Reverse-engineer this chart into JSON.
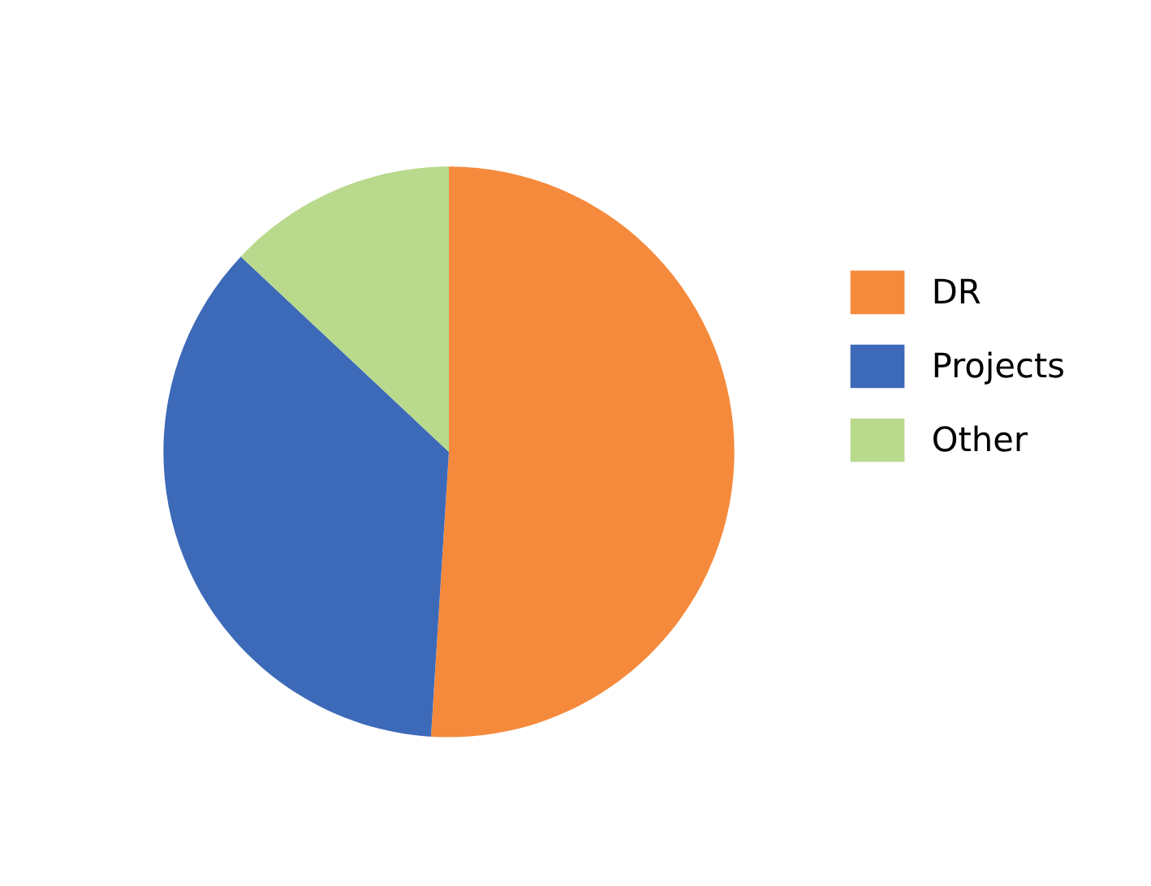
{
  "chart_data": {
    "type": "pie",
    "categories": [
      "DR",
      "Projects",
      "Other"
    ],
    "values": [
      51,
      36,
      13
    ],
    "colors": [
      "#f58a3c",
      "#3d6ab8",
      "#b9d98c"
    ],
    "legend": "right"
  }
}
